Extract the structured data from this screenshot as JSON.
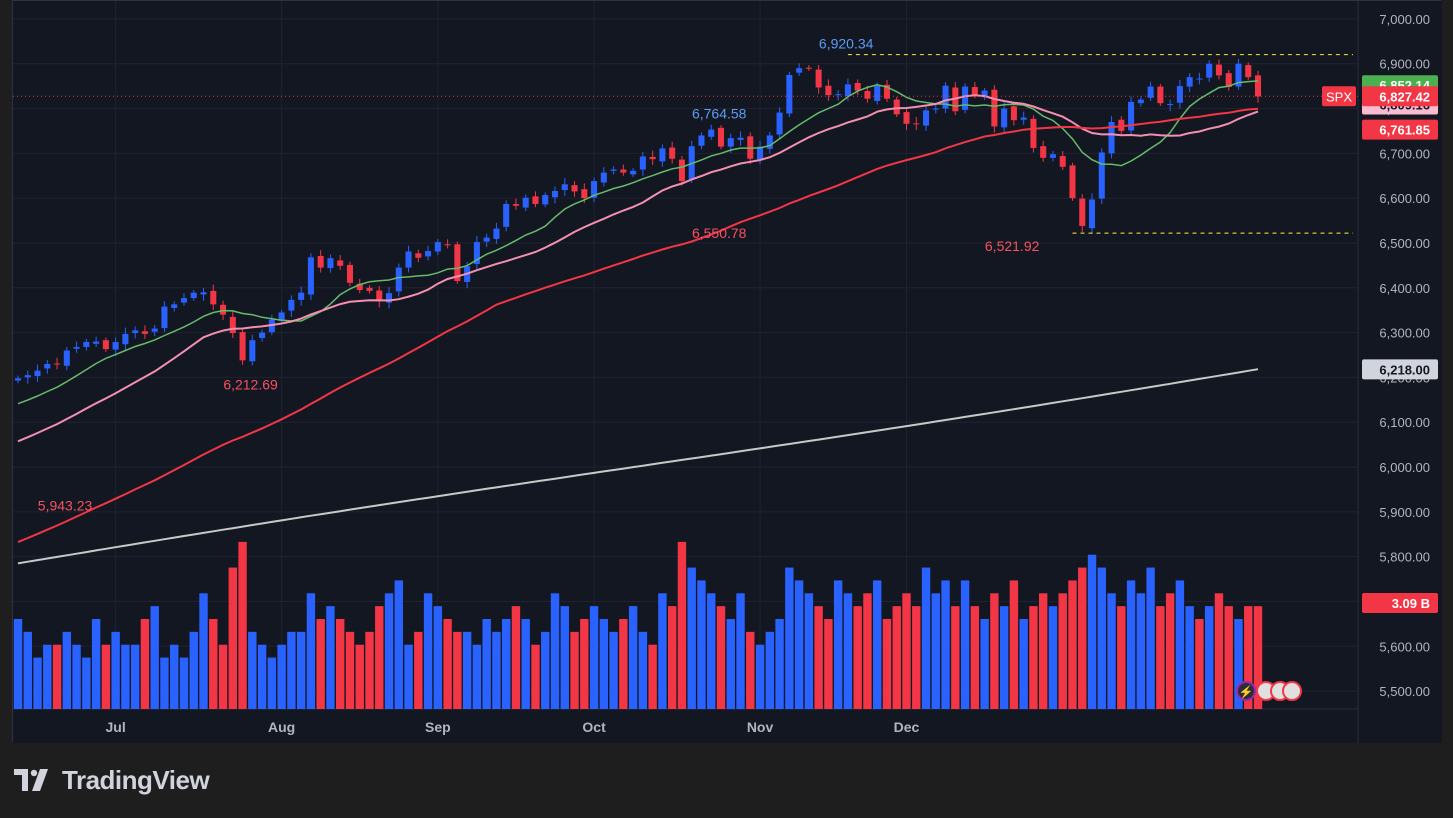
{
  "chart_data": {
    "type": "candlestick",
    "symbol": "SPX",
    "x_ticks": [
      "Jul",
      "Aug",
      "Sep",
      "Oct",
      "Nov",
      "Dec"
    ],
    "y_ticks": [
      "7,000.00",
      "6,900.00",
      "6,800.00",
      "6,700.00",
      "6,600.00",
      "6,500.00",
      "6,400.00",
      "6,300.00",
      "6,200.00",
      "6,100.00",
      "6,000.00",
      "5,900.00",
      "5,800.00",
      "5,700.00",
      "5,600.00",
      "5,500.00"
    ],
    "ylim": [
      5460,
      7040
    ],
    "price_labels": {
      "last": "6,827.42",
      "ma_green": "6,852.14",
      "ma_pink": "6,809.16",
      "ma_red": "6,761.85",
      "ma_white": "6,218.00",
      "volume": "3.09 B"
    },
    "annotations": [
      {
        "text": "6,920.34",
        "value": 6920.34,
        "kind": "high"
      },
      {
        "text": "6,764.58",
        "value": 6764.58,
        "kind": "high"
      },
      {
        "text": "6,550.78",
        "value": 6550.78,
        "kind": "low"
      },
      {
        "text": "6,521.92",
        "value": 6521.92,
        "kind": "low"
      },
      {
        "text": "6,212.69",
        "value": 6212.69,
        "kind": "low"
      },
      {
        "text": "5,943.23",
        "value": 5943.23,
        "kind": "low"
      }
    ],
    "range_lines": [
      6920.34,
      6521.92
    ],
    "closes": [
      6198,
      6205,
      6215,
      6230,
      6229,
      6260,
      6268,
      6279,
      6280,
      6263,
      6279,
      6297,
      6305,
      6297,
      6309,
      6358,
      6363,
      6377,
      6389,
      6390,
      6363,
      6340,
      6299,
      6238,
      6283,
      6300,
      6329,
      6345,
      6373,
      6389,
      6468,
      6445,
      6466,
      6449,
      6411,
      6395,
      6393,
      6370,
      6388,
      6445,
      6481,
      6467,
      6482,
      6502,
      6495,
      6415,
      6448,
      6502,
      6512,
      6532,
      6587,
      6583,
      6601,
      6587,
      6607,
      6616,
      6631,
      6615,
      6600,
      6638,
      6657,
      6664,
      6657,
      6661,
      6693,
      6687,
      6711,
      6688,
      6638,
      6716,
      6740,
      6753,
      6715,
      6734,
      6735,
      6688,
      6715,
      6740,
      6791,
      6875,
      6890,
      6890,
      6847,
      6830,
      6832,
      6854,
      6840,
      6822,
      6851,
      6822,
      6787,
      6766,
      6765,
      6796,
      6800,
      6851,
      6794,
      6849,
      6830,
      6840,
      6760,
      6800,
      6774,
      6780,
      6712,
      6690,
      6698,
      6670,
      6600,
      6538,
      6597,
      6702,
      6770,
      6750,
      6815,
      6820,
      6849,
      6812,
      6810,
      6850,
      6870,
      6867,
      6900,
      6874,
      6848,
      6900,
      6870,
      6827
    ],
    "volume_b": [
      5.2,
      5.1,
      4.9,
      5.0,
      5.0,
      5.1,
      5.0,
      4.9,
      5.2,
      5.0,
      5.1,
      5.0,
      5.0,
      5.2,
      5.3,
      4.9,
      5.0,
      4.9,
      5.1,
      5.4,
      5.2,
      5.0,
      5.6,
      5.8,
      5.1,
      5.0,
      4.9,
      5.0,
      5.1,
      5.1,
      5.4,
      5.2,
      5.3,
      5.2,
      5.1,
      5.0,
      5.1,
      5.3,
      5.4,
      5.5,
      5.0,
      5.1,
      5.4,
      5.3,
      5.2,
      5.1,
      5.1,
      5.0,
      5.2,
      5.1,
      5.2,
      5.3,
      5.2,
      5.0,
      5.1,
      5.4,
      5.3,
      5.1,
      5.2,
      5.3,
      5.2,
      5.1,
      5.2,
      5.3,
      5.1,
      5.0,
      5.4,
      5.3,
      5.8,
      5.6,
      5.5,
      5.4,
      5.3,
      5.2,
      5.4,
      5.1,
      5.0,
      5.1,
      5.2,
      5.6,
      5.5,
      5.4,
      5.3,
      5.2,
      5.5,
      5.4,
      5.3,
      5.4,
      5.5,
      5.2,
      5.3,
      5.4,
      5.3,
      5.6,
      5.4,
      5.5,
      5.3,
      5.5,
      5.3,
      5.2,
      5.4,
      5.3,
      5.5,
      5.2,
      5.3,
      5.4,
      5.3,
      5.4,
      5.5,
      5.6,
      5.7,
      5.6,
      5.4,
      5.3,
      5.5,
      5.4,
      5.6,
      5.3,
      5.4,
      5.5,
      5.3,
      5.2,
      5.3,
      5.4,
      5.3,
      5.2,
      5.3,
      3.09
    ]
  }
}
